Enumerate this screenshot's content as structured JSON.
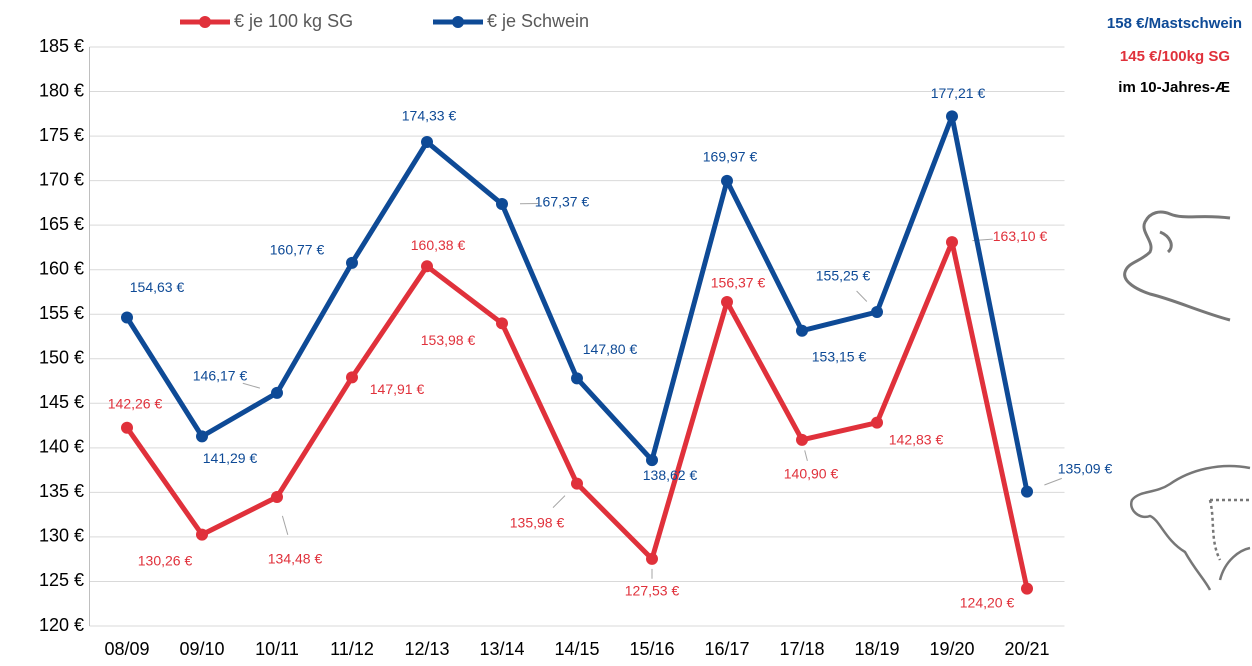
{
  "chart_data": {
    "type": "line",
    "categories": [
      "08/09",
      "09/10",
      "10/11",
      "11/12",
      "12/13",
      "13/14",
      "14/15",
      "15/16",
      "16/17",
      "17/18",
      "18/19",
      "19/20",
      "20/21"
    ],
    "series": [
      {
        "name": "€ je 100 kg SG",
        "color": "#e0313b",
        "values": [
          142.26,
          130.26,
          134.48,
          147.91,
          160.38,
          153.98,
          135.98,
          127.53,
          156.37,
          140.9,
          142.83,
          163.1,
          124.2
        ],
        "value_labels": [
          "142,26 €",
          "130,26 €",
          "134,48 €",
          "147,91 €",
          "160,38 €",
          "153,98 €",
          "135,98 €",
          "127,53 €",
          "156,37 €",
          "140,90 €",
          "142,83 €",
          "163,10 €",
          "124,20 €"
        ]
      },
      {
        "name": "€ je Schwein",
        "color": "#0e4a96",
        "values": [
          154.63,
          141.29,
          146.17,
          160.77,
          174.33,
          167.37,
          147.8,
          138.62,
          169.97,
          153.15,
          155.25,
          177.21,
          135.09
        ],
        "value_labels": [
          "154,63 €",
          "141,29 €",
          "146,17 €",
          "160,77 €",
          "174,33 €",
          "167,37 €",
          "147,80 €",
          "138,62 €",
          "169,97 €",
          "153,15 €",
          "155,25 €",
          "177,21 €",
          "135,09 €"
        ]
      }
    ],
    "ylim": [
      120,
      185
    ],
    "yticks": [
      {
        "value": 120,
        "label": "120 €"
      },
      {
        "value": 125,
        "label": "125 €"
      },
      {
        "value": 130,
        "label": "130 €"
      },
      {
        "value": 135,
        "label": "135 €"
      },
      {
        "value": 140,
        "label": "140 €"
      },
      {
        "value": 145,
        "label": "145 €"
      },
      {
        "value": 150,
        "label": "150 €"
      },
      {
        "value": 155,
        "label": "155 €"
      },
      {
        "value": 160,
        "label": "160 €"
      },
      {
        "value": 165,
        "label": "165 €"
      },
      {
        "value": 170,
        "label": "170 €"
      },
      {
        "value": 175,
        "label": "175 €"
      },
      {
        "value": 180,
        "label": "180 €"
      },
      {
        "value": 185,
        "label": "185 €"
      }
    ],
    "grid": true,
    "annotations": [
      "158 €/Mastschwein",
      "145 €/100kg SG",
      "im 10-Jahres-Æ"
    ]
  }
}
